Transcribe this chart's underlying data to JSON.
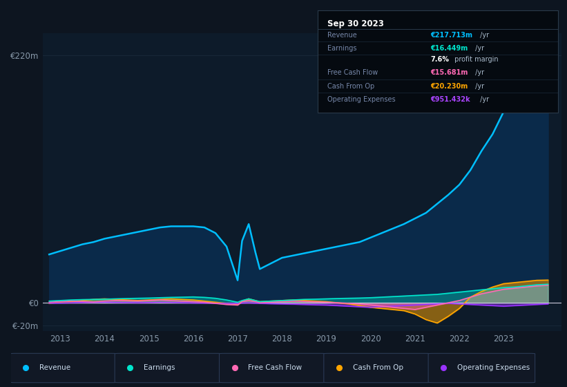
{
  "bg_color": "#0d1520",
  "plot_bg": "#0d1b2a",
  "grid_color": "#1a2a3a",
  "title_box": {
    "date": "Sep 30 2023",
    "rows": [
      {
        "label": "Revenue",
        "value": "€217.713m",
        "value_color": "#00bfff"
      },
      {
        "label": "Earnings",
        "value": "€16.449m",
        "value_color": "#00e5cc"
      },
      {
        "label": "",
        "value": "7.6% profit margin",
        "value_color": "#ffffff"
      },
      {
        "label": "Free Cash Flow",
        "value": "€15.681m",
        "value_color": "#ff69b4"
      },
      {
        "label": "Cash From Op",
        "value": "€20.230m",
        "value_color": "#ffa500"
      },
      {
        "label": "Operating Expenses",
        "value": "€951.432k",
        "value_color": "#aa44ff"
      }
    ]
  },
  "ylim": [
    -25,
    240
  ],
  "ytick_vals": [
    -20,
    0,
    220
  ],
  "ytick_labels": [
    "€-20m",
    "€0",
    "€220m"
  ],
  "xlim": [
    2012.6,
    2024.3
  ],
  "xticks": [
    2013,
    2014,
    2015,
    2016,
    2017,
    2018,
    2019,
    2020,
    2021,
    2022,
    2023
  ],
  "years": [
    2012.75,
    2013.0,
    2013.25,
    2013.5,
    2013.75,
    2014.0,
    2014.25,
    2014.5,
    2014.75,
    2015.0,
    2015.25,
    2015.5,
    2015.75,
    2016.0,
    2016.25,
    2016.5,
    2016.75,
    2017.0,
    2017.1,
    2017.25,
    2017.4,
    2017.5,
    2017.75,
    2018.0,
    2018.25,
    2018.5,
    2018.75,
    2019.0,
    2019.25,
    2019.5,
    2019.75,
    2020.0,
    2020.25,
    2020.5,
    2020.75,
    2021.0,
    2021.25,
    2021.5,
    2021.75,
    2022.0,
    2022.25,
    2022.5,
    2022.75,
    2023.0,
    2023.25,
    2023.5,
    2023.75,
    2024.0
  ],
  "revenue": [
    43,
    46,
    49,
    52,
    54,
    57,
    59,
    61,
    63,
    65,
    67,
    68,
    68,
    68,
    67,
    62,
    50,
    20,
    55,
    70,
    45,
    30,
    35,
    40,
    42,
    44,
    46,
    48,
    50,
    52,
    54,
    58,
    62,
    66,
    70,
    75,
    80,
    88,
    96,
    105,
    118,
    135,
    150,
    170,
    185,
    200,
    215,
    218
  ],
  "earnings": [
    1.5,
    2.0,
    2.5,
    2.8,
    3.0,
    3.2,
    3.5,
    3.8,
    4.0,
    4.2,
    4.5,
    4.8,
    5.0,
    5.2,
    4.8,
    4.0,
    2.5,
    0.5,
    2.0,
    3.5,
    2.0,
    1.0,
    1.5,
    2.0,
    2.5,
    3.0,
    3.2,
    3.5,
    3.8,
    4.0,
    4.2,
    4.5,
    5.0,
    5.5,
    6.0,
    6.5,
    7.0,
    7.5,
    8.5,
    9.5,
    10.5,
    11.5,
    12.5,
    13.5,
    14.0,
    15.0,
    16.0,
    16.5
  ],
  "free_cash": [
    0.5,
    1.0,
    1.5,
    1.2,
    0.8,
    1.5,
    2.0,
    1.8,
    1.5,
    2.0,
    2.5,
    2.0,
    1.5,
    1.0,
    0.5,
    -0.5,
    -1.5,
    -2.0,
    1.0,
    2.0,
    1.0,
    0.0,
    0.5,
    1.0,
    1.5,
    1.2,
    0.8,
    0.5,
    0.0,
    -0.5,
    -1.0,
    -2.0,
    -3.0,
    -4.0,
    -5.0,
    -6.0,
    -4.0,
    -2.0,
    0.0,
    2.0,
    5.0,
    8.0,
    10.0,
    12.0,
    13.0,
    14.0,
    15.0,
    15.7
  ],
  "cash_from_op": [
    -0.5,
    0.5,
    1.0,
    2.0,
    3.0,
    3.5,
    3.0,
    2.5,
    2.0,
    2.5,
    3.0,
    3.5,
    3.0,
    2.5,
    1.5,
    0.5,
    -0.5,
    -1.5,
    1.5,
    3.5,
    2.0,
    1.0,
    1.5,
    2.0,
    2.5,
    2.0,
    1.5,
    1.0,
    0.0,
    -1.0,
    -2.5,
    -4.0,
    -5.0,
    -6.0,
    -7.0,
    -10.0,
    -15.0,
    -18.0,
    -12.0,
    -5.0,
    5.0,
    10.0,
    14.0,
    17.0,
    18.0,
    19.0,
    20.0,
    20.2
  ],
  "op_expenses": [
    -0.3,
    -0.2,
    0.0,
    0.2,
    0.3,
    0.5,
    0.3,
    0.2,
    0.0,
    0.2,
    0.4,
    0.3,
    0.1,
    -0.1,
    -0.2,
    -0.4,
    -0.5,
    -0.6,
    -0.2,
    0.0,
    -0.3,
    -0.5,
    -0.8,
    -1.0,
    -1.2,
    -1.5,
    -1.8,
    -2.0,
    -2.5,
    -3.0,
    -3.5,
    -4.0,
    -3.5,
    -3.0,
    -2.5,
    -2.0,
    -1.5,
    -1.0,
    -0.5,
    -1.0,
    -1.5,
    -2.0,
    -2.5,
    -3.0,
    -2.5,
    -2.0,
    -1.5,
    -1.0
  ],
  "colors": {
    "revenue": "#00bfff",
    "earnings": "#00e5cc",
    "free_cash": "#ff69b4",
    "cash_from_op": "#ffa500",
    "op_expenses": "#9933ff"
  },
  "legend": [
    {
      "label": "Revenue",
      "color": "#00bfff"
    },
    {
      "label": "Earnings",
      "color": "#00e5cc"
    },
    {
      "label": "Free Cash Flow",
      "color": "#ff69b4"
    },
    {
      "label": "Cash From Op",
      "color": "#ffa500"
    },
    {
      "label": "Operating Expenses",
      "color": "#9933ff"
    }
  ]
}
